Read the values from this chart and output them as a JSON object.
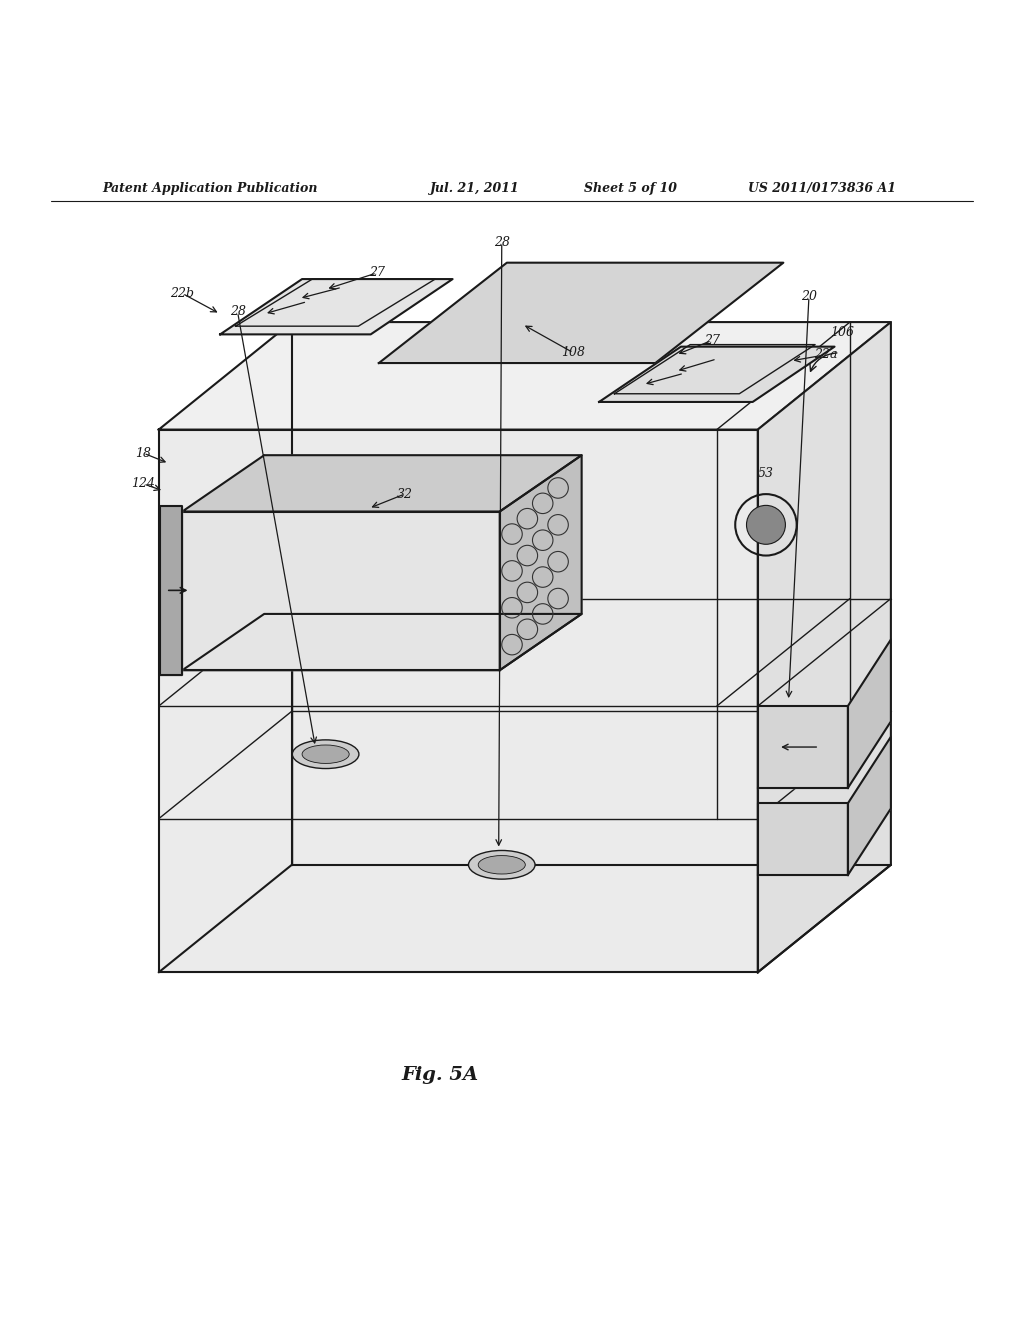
{
  "bg_color": "#ffffff",
  "line_color": "#1a1a1a",
  "header_text": "Patent Application Publication",
  "header_date": "Jul. 21, 2011",
  "header_sheet": "Sheet 5 of 10",
  "header_patent": "US 2011/0173836 A1",
  "fig_label": "Fig. 5A",
  "lw_main": 1.5,
  "lw_thin": 1.0,
  "lw_inner": 0.8
}
